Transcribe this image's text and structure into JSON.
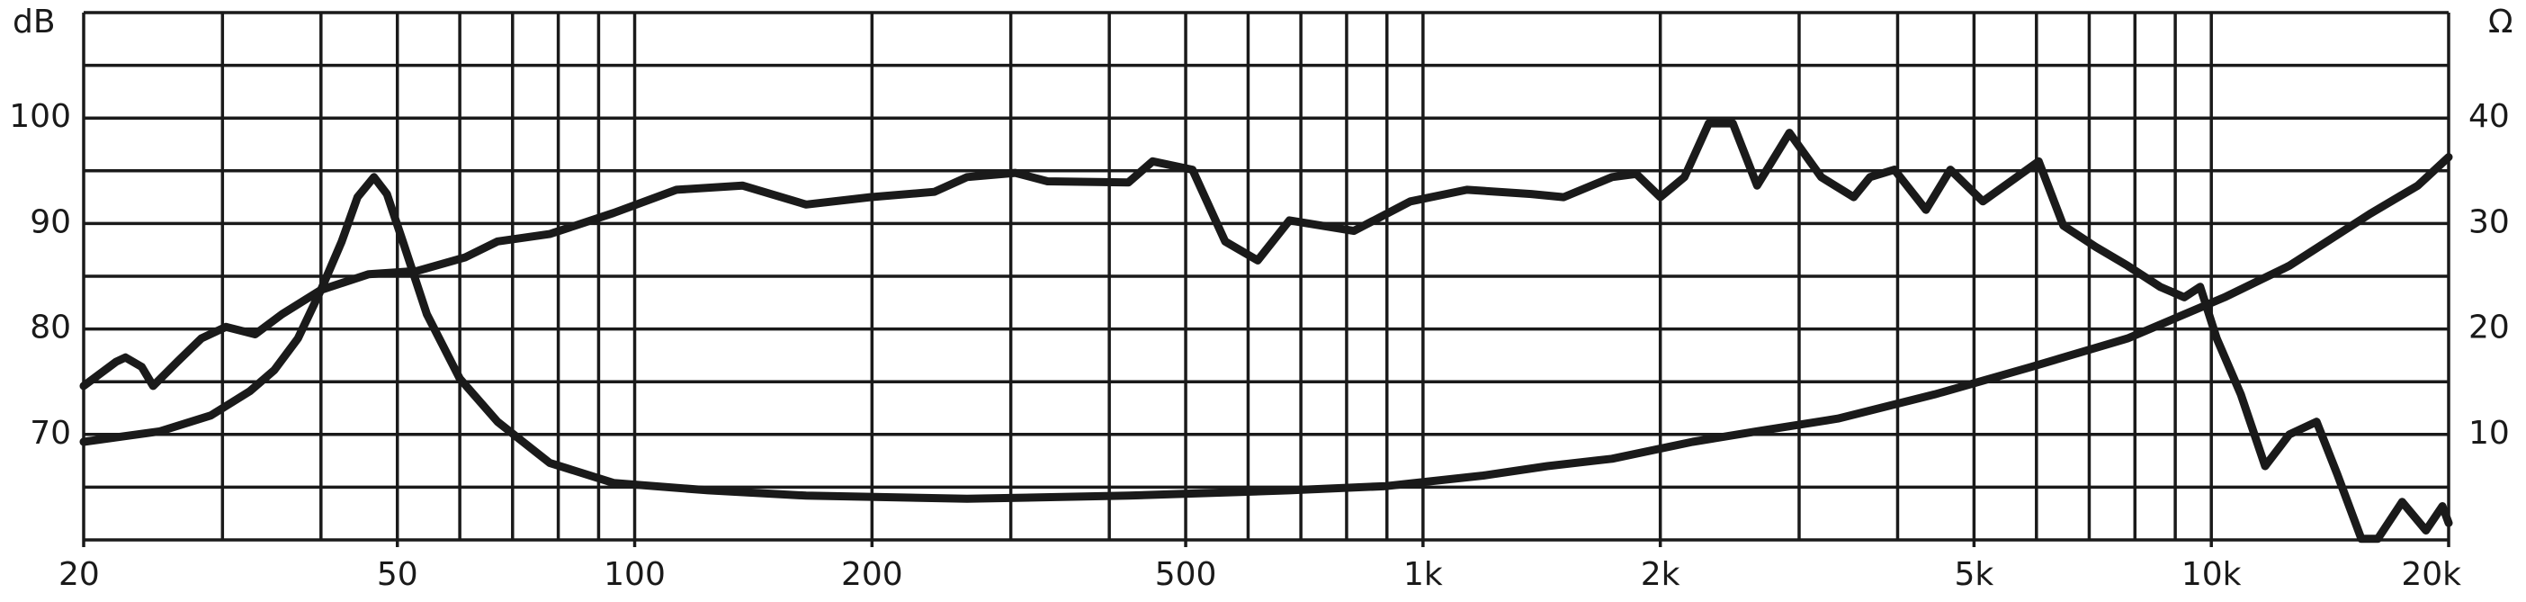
{
  "chart_data": {
    "type": "line",
    "ylabel": "dB",
    "y2label": "Ω",
    "xscale": "log",
    "xlim": [
      20,
      20000
    ],
    "xticks": [
      20,
      50,
      100,
      200,
      500,
      {
        "value": 1000,
        "label": "1k"
      },
      {
        "value": 2000,
        "label": "2k"
      },
      {
        "value": 5000,
        "label": "5k"
      },
      {
        "value": 10000,
        "label": "10k"
      },
      {
        "value": 20000,
        "label": "20k"
      }
    ],
    "xgrid": [
      20,
      30,
      40,
      50,
      60,
      70,
      80,
      90,
      100,
      200,
      300,
      400,
      500,
      600,
      700,
      800,
      900,
      1000,
      2000,
      3000,
      4000,
      5000,
      6000,
      7000,
      8000,
      9000,
      10000,
      20000
    ],
    "ylim": [
      60,
      110
    ],
    "yticks": [
      70,
      80,
      90,
      100
    ],
    "ygrid": [
      60,
      65,
      70,
      75,
      80,
      85,
      90,
      95,
      100,
      105,
      110
    ],
    "y2lim": [
      0,
      50
    ],
    "y2ticks": [
      10,
      20,
      30,
      40
    ],
    "grid": true,
    "series": [
      {
        "color": "#1a1a1a",
        "x": [
          20,
          22,
          22.6,
          23.7,
          24.5,
          26.3,
          28.2,
          30.3,
          33,
          35.7,
          40,
          46,
          53,
          61,
          67,
          78,
          94,
          113,
          137,
          165,
          199,
          240,
          264,
          304,
          334,
          423,
          454,
          510,
          561,
          617,
          677,
          817,
          964,
          1137,
          1372,
          1508,
          1737,
          1864,
          2000,
          2146,
          2304,
          2472,
          2654,
          2916,
          3200,
          3518,
          3690,
          3963,
          4346,
          4666,
          5130,
          6040,
          6490,
          7130,
          7830,
          8610,
          9240,
          9680,
          10160,
          10900,
          11700,
          12560,
          13600,
          14450,
          15500,
          16260,
          17460,
          18720,
          19640,
          20000
        ],
        "values": [
          74.6,
          76.9,
          77.3,
          76.4,
          74.6,
          76.9,
          79.1,
          80.2,
          79.5,
          81.4,
          83.7,
          85.2,
          85.5,
          86.8,
          88.3,
          89,
          91,
          93.2,
          93.6,
          91.8,
          92.5,
          93,
          94.4,
          94.8,
          94,
          93.9,
          95.9,
          95.1,
          88.3,
          86.5,
          90.3,
          89.3,
          92.1,
          93.2,
          92.8,
          92.5,
          94.4,
          94.7,
          92.5,
          94.4,
          99.5,
          99.5,
          93.6,
          98.6,
          94.4,
          92.5,
          94.4,
          95.1,
          91.3,
          95.1,
          92.1,
          95.9,
          89.8,
          87.8,
          86,
          84,
          83,
          84,
          79.1,
          73.8,
          67,
          70,
          71.2,
          66.2,
          60.1,
          60.1,
          63.6,
          60.9,
          63.2,
          61.6
        ]
      },
      {
        "color": "#1a1a1a",
        "axis": "y2",
        "x": [
          20,
          25,
          29,
          32.5,
          34.9,
          37.4,
          40,
          42.5,
          44.5,
          46.7,
          48.5,
          50.8,
          54.5,
          60,
          67,
          78,
          94,
          124,
          165,
          264,
          423,
          677,
          898,
          1192,
          1438,
          1737,
          2198,
          2654,
          3358,
          4456,
          5906,
          7830,
          10390,
          12560,
          15880,
          18280,
          20000
        ],
        "values": [
          9.3,
          10.3,
          11.8,
          14.1,
          16.1,
          19.1,
          23.7,
          28.3,
          32.5,
          34.4,
          32.8,
          28.3,
          21.4,
          15.3,
          11.2,
          7.3,
          5.4,
          4.7,
          4.2,
          3.9,
          4.2,
          4.7,
          5.1,
          6.1,
          7,
          7.7,
          9.3,
          10.3,
          11.5,
          13.8,
          16.4,
          19.1,
          23,
          26,
          30.9,
          33.6,
          36.3
        ]
      }
    ]
  }
}
